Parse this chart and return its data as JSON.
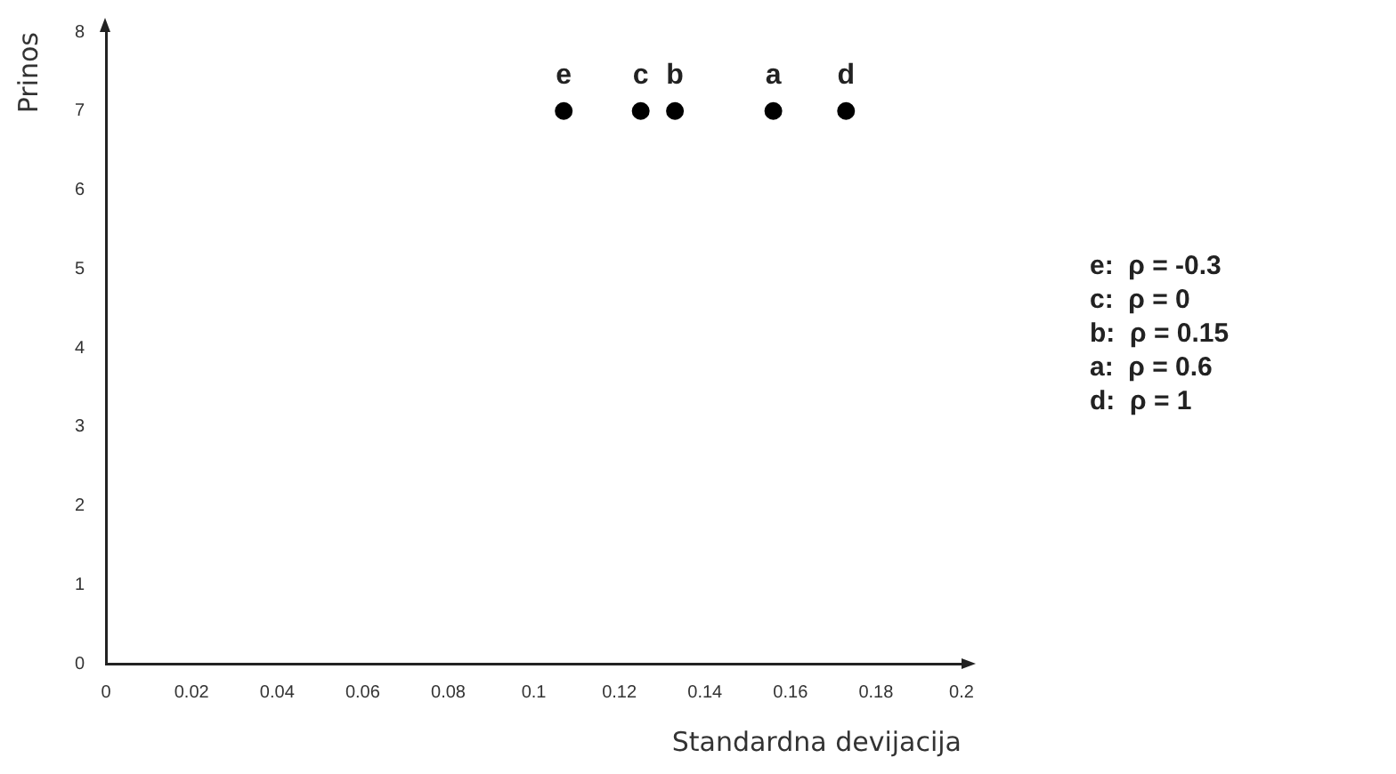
{
  "chart_data": {
    "type": "scatter",
    "xlabel": "Standardna devijacija",
    "ylabel": "Prinos",
    "x": [
      0.107,
      0.125,
      0.133,
      0.156,
      0.173
    ],
    "series": [
      {
        "color": "#000000",
        "values": [
          7,
          7,
          7,
          7,
          7
        ]
      }
    ],
    "xlim": [
      0,
      0.2
    ],
    "xticks": [
      0,
      0.02,
      0.04,
      0.06,
      0.08,
      0.1,
      0.12,
      0.14,
      0.16,
      0.18,
      0.2
    ],
    "ylim": [
      0,
      8
    ],
    "yticks": [
      0,
      1,
      2,
      3,
      4,
      5,
      6,
      7,
      8
    ],
    "grid": false,
    "legend": false,
    "marker": "circle",
    "annotations": [
      {
        "text": "e",
        "x": 0.107,
        "y": 7
      },
      {
        "text": "c",
        "x": 0.125,
        "y": 7
      },
      {
        "text": "b",
        "x": 0.133,
        "y": 7
      },
      {
        "text": "a",
        "x": 0.156,
        "y": 7
      },
      {
        "text": "d",
        "x": 0.173,
        "y": 7
      },
      "e:  ρ = -0.3",
      "c:  ρ = 0",
      "b:  ρ = 0.15",
      "a:  ρ = 0.6",
      "d:  ρ = 1"
    ]
  }
}
